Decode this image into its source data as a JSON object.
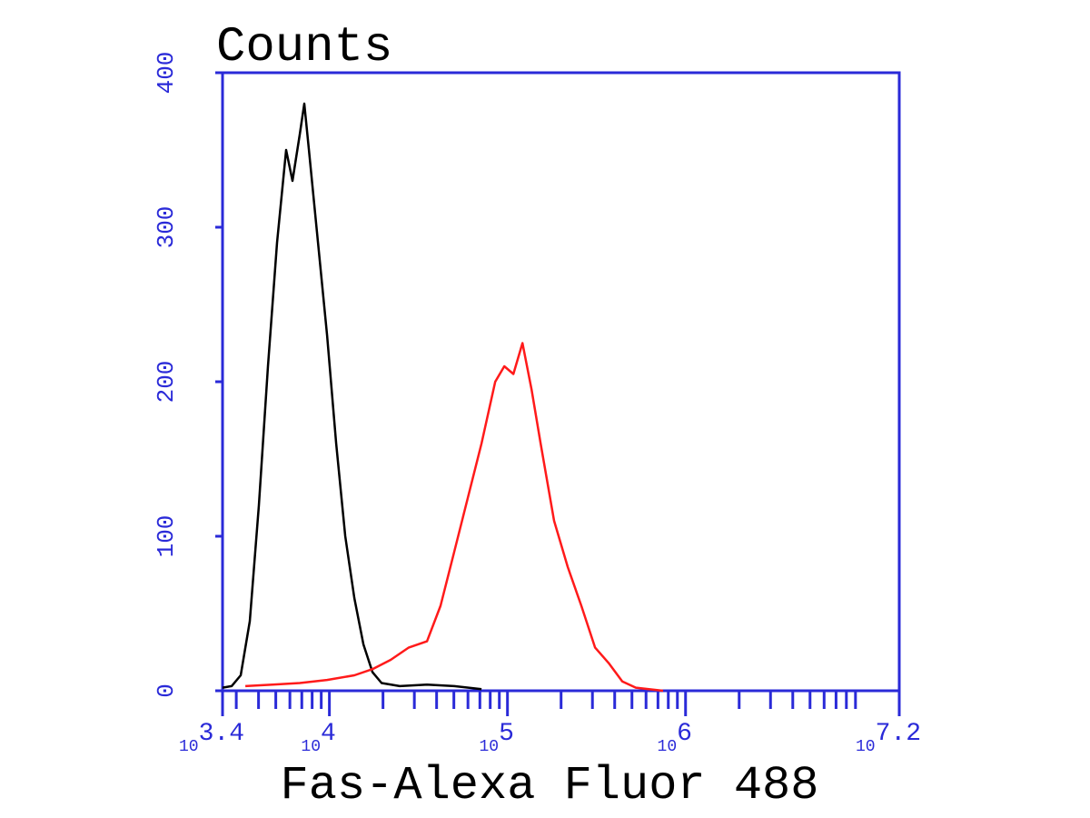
{
  "chart_data": {
    "type": "line",
    "y_label": "Counts",
    "x_label": "Fas-Alexa Fluor 488",
    "xscale": "log",
    "xlim": [
      2511.886,
      15848931.92
    ],
    "ylim": [
      0,
      400
    ],
    "yticks": [
      0,
      100,
      200,
      300,
      400
    ],
    "xticks": [
      {
        "value": 2511.886,
        "label": "10",
        "sup": "3.4"
      },
      {
        "value": 10000,
        "label": "10",
        "sup": "4"
      },
      {
        "value": 100000,
        "label": "10",
        "sup": "5"
      },
      {
        "value": 1000000,
        "label": "10",
        "sup": "6"
      },
      {
        "value": 15848931.92,
        "label": "10",
        "sup": "7.2"
      }
    ],
    "xminor_ticks": [
      3000,
      4000,
      5000,
      6000,
      7000,
      8000,
      9000,
      20000,
      30000,
      40000,
      50000,
      60000,
      70000,
      80000,
      90000,
      200000,
      300000,
      400000,
      500000,
      600000,
      700000,
      800000,
      900000,
      2000000,
      3000000,
      4000000,
      5000000,
      6000000,
      7000000,
      8000000,
      9000000
    ],
    "axis_color": "#2a2ad8",
    "series": [
      {
        "color": "#000000",
        "x": [
          2512,
          2825,
          3177,
          3573,
          4018,
          4519,
          5082,
          5715,
          6207,
          6816,
          7228,
          7674,
          8630,
          9705,
          10914,
          12274,
          13804,
          15524,
          17458,
          19634,
          24833,
          35318,
          50231,
          71441
        ],
        "values": [
          2,
          3,
          10,
          45,
          120,
          210,
          290,
          350,
          330,
          360,
          380,
          350,
          290,
          230,
          160,
          100,
          60,
          30,
          12,
          5,
          3,
          4,
          3,
          1
        ]
      },
      {
        "color": "#ff1a1a",
        "x": [
          3373,
          4797,
          6816,
          9705,
          13804,
          17458,
          22080,
          27925,
          35318,
          42073,
          50231,
          59948,
          71441,
          85310,
          95940,
          107895,
          121339,
          136458,
          153462,
          182810,
          218273,
          260016,
          310456,
          369828,
          441570,
          526017,
          748169
        ],
        "values": [
          3,
          4,
          5,
          7,
          10,
          14,
          20,
          28,
          32,
          55,
          90,
          125,
          160,
          200,
          210,
          205,
          225,
          195,
          160,
          110,
          80,
          55,
          28,
          18,
          6,
          2,
          0
        ]
      }
    ]
  }
}
